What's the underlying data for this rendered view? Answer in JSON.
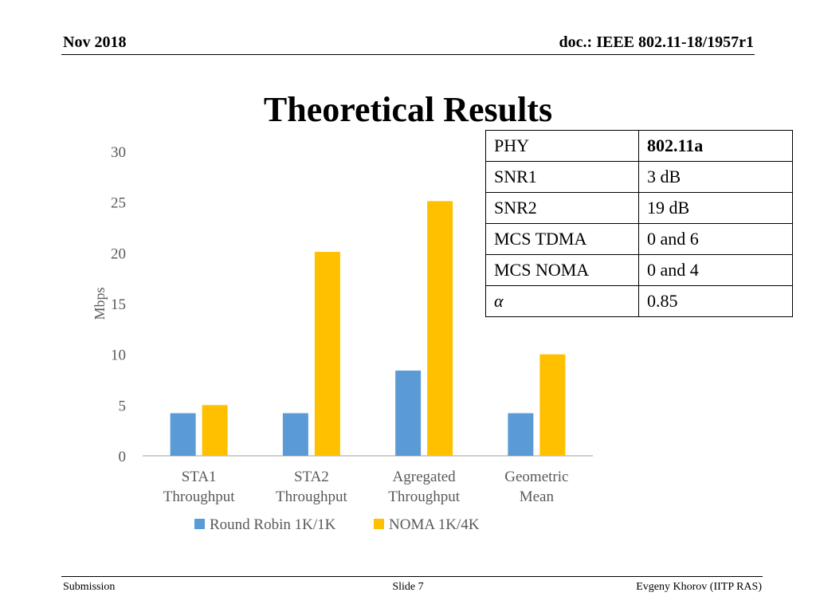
{
  "header": {
    "date": "Nov 2018",
    "doc_id": "doc.: IEEE 802.11-18/1957r1"
  },
  "slide": {
    "title": "Theoretical Results"
  },
  "param_table": {
    "rows": [
      {
        "param": "PHY",
        "value": "802.11a"
      },
      {
        "param": "SNR1",
        "value": "3 dB"
      },
      {
        "param": "SNR2",
        "value": "19 dB"
      },
      {
        "param": "MCS TDMA",
        "value": "0 and 6"
      },
      {
        "param": "MCS NOMA",
        "value": "0 and 4"
      },
      {
        "param": "α",
        "value": "0.85"
      }
    ]
  },
  "footer": {
    "left": "Submission",
    "center": "Slide 7",
    "right": "Evgeny Khorov (IITP RAS)"
  },
  "chart_data": {
    "type": "bar",
    "categories": [
      [
        "STA1",
        "Throughput"
      ],
      [
        "STA2",
        "Throughput"
      ],
      [
        "Agregated",
        "Throughput"
      ],
      [
        "Geometric",
        "Mean"
      ]
    ],
    "series": [
      {
        "name": "Round Robin 1K/1K",
        "color": "#5B9BD5",
        "values": [
          4.2,
          4.2,
          8.4,
          4.2
        ]
      },
      {
        "name": "NOMA 1K/4K",
        "color": "#FFC000",
        "values": [
          5.0,
          20.1,
          25.1,
          10.0
        ]
      }
    ],
    "ylabel": "Mbps",
    "ylim": [
      0,
      30
    ],
    "yticks": [
      0,
      5,
      10,
      15,
      20,
      25,
      30
    ],
    "grid": false,
    "legend_position": "bottom"
  }
}
